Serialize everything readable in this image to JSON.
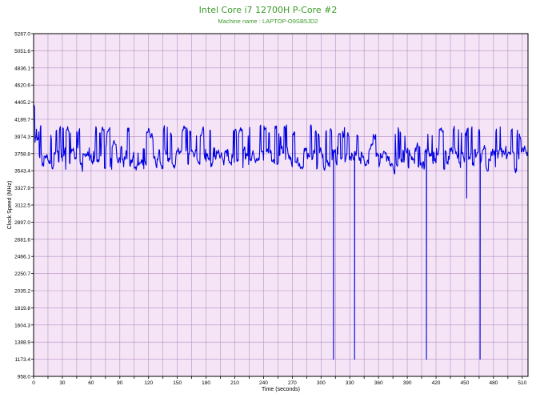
{
  "colors": {
    "title": "#3a9a2a",
    "subtitle": "#3a9a2a",
    "plot_background": "#f4e4f6",
    "grid": "#b890c4",
    "series": "#0000e0",
    "frame": "#000000"
  },
  "chart_data": {
    "type": "line",
    "title": "Intel Core i7 12700H P-Core #2",
    "subtitle": "Machine name : LAPTOP-O9SB5JD2",
    "xlabel": "Time (seconds)",
    "ylabel": "Clock Speed (MHz)",
    "xlim": [
      0,
      516
    ],
    "ylim": [
      958.0,
      5267.0
    ],
    "grid": true,
    "x_ticks": [
      0,
      15,
      30,
      45,
      60,
      75,
      90,
      105,
      120,
      135,
      150,
      165,
      180,
      195,
      210,
      225,
      240,
      255,
      270,
      285,
      300,
      315,
      330,
      345,
      360,
      375,
      390,
      405,
      420,
      435,
      450,
      465,
      480,
      495,
      510
    ],
    "x_tick_labels": [
      "0",
      "",
      "30",
      "",
      "60",
      "",
      "90",
      "",
      "120",
      "",
      "150",
      "",
      "180",
      "",
      "210",
      "",
      "240",
      "",
      "270",
      "",
      "300",
      "",
      "330",
      "",
      "360",
      "",
      "390",
      "",
      "420",
      "",
      "450",
      "",
      "480",
      "",
      "510"
    ],
    "y_ticks": [
      958.0,
      1173.4,
      1388.9,
      1604.3,
      1819.8,
      2035.2,
      2250.7,
      2466.1,
      2681.6,
      2897.0,
      3112.5,
      3327.9,
      3543.4,
      3758.8,
      3974.3,
      4189.7,
      4405.2,
      4620.6,
      4836.1,
      5051.6,
      5267.0
    ],
    "y_tick_labels": [
      "958.0",
      "1173.4",
      "1388.9",
      "1604.3",
      "1819.8",
      "2035.2",
      "2250.7",
      "2466.1",
      "2681.6",
      "2897.0",
      "3112.5",
      "3327.9",
      "3543.4",
      "3758.8",
      "3974.3",
      "4189.7",
      "4405.2",
      "4620.6",
      "4836.1",
      "5051.6",
      "5267.0"
    ],
    "series": [
      {
        "baseline": 3758.8,
        "typical_range": [
          3543.4,
          4100.0
        ],
        "initial_peak": {
          "x": 1,
          "y": 4405.2
        },
        "dips": [
          {
            "x": 313,
            "y": 1173.4
          },
          {
            "x": 335,
            "y": 1173.4
          },
          {
            "x": 410,
            "y": 1173.4
          },
          {
            "x": 452,
            "y": 3200.0
          },
          {
            "x": 466,
            "y": 1173.4
          }
        ]
      }
    ]
  }
}
